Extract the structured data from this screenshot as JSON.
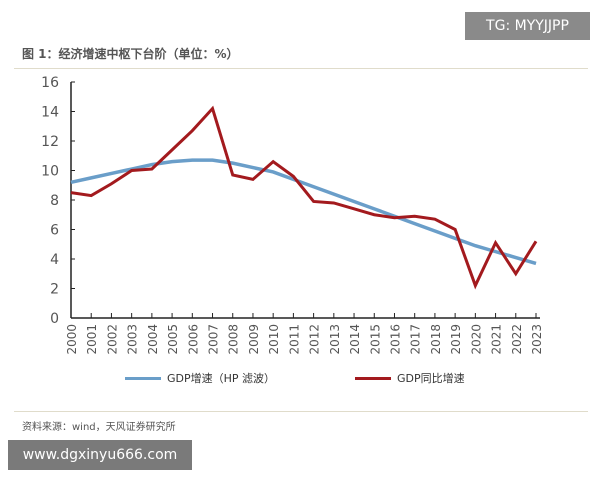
{
  "watermark_top": "TG: MYYJJPP",
  "watermark_bottom": "www.dgxinyu666.com",
  "source": "资料来源：wind，天风证券研究所",
  "chart_data": {
    "type": "line",
    "title": "图 1：经济增速中枢下台阶（单位：%）",
    "x": [
      2000,
      2001,
      2002,
      2003,
      2004,
      2005,
      2006,
      2007,
      2008,
      2009,
      2010,
      2011,
      2012,
      2013,
      2014,
      2015,
      2016,
      2017,
      2018,
      2019,
      2020,
      2021,
      2022,
      2023
    ],
    "ylim": [
      0,
      16
    ],
    "yticks": [
      0,
      2,
      4,
      6,
      8,
      10,
      12,
      14,
      16
    ],
    "grid": false,
    "legend": "bottom",
    "series": [
      {
        "name": "GDP增速（HP 滤波）",
        "color": "#6a9ec9",
        "values": [
          9.2,
          9.5,
          9.8,
          10.1,
          10.4,
          10.6,
          10.7,
          10.7,
          10.5,
          10.2,
          9.9,
          9.4,
          8.9,
          8.4,
          7.9,
          7.4,
          6.9,
          6.4,
          5.9,
          5.4,
          4.9,
          4.5,
          4.1,
          3.7
        ]
      },
      {
        "name": "GDP同比增速",
        "color": "#a31a1e",
        "values": [
          8.5,
          8.3,
          9.1,
          10.0,
          10.1,
          11.4,
          12.7,
          14.2,
          9.7,
          9.4,
          10.6,
          9.6,
          7.9,
          7.8,
          7.4,
          7.0,
          6.8,
          6.9,
          6.7,
          6.0,
          2.2,
          5.1,
          3.0,
          5.2
        ]
      }
    ]
  }
}
